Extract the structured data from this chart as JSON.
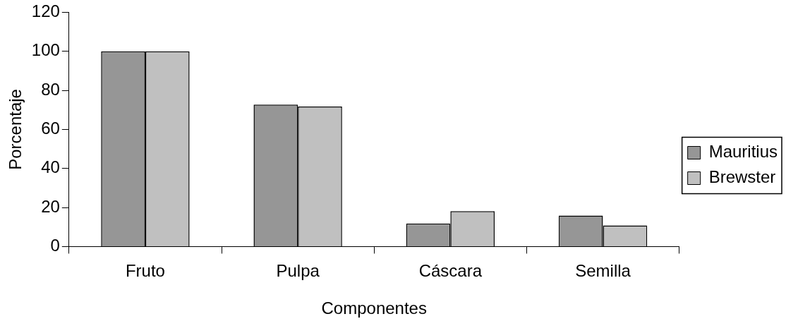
{
  "chart_data": {
    "type": "bar",
    "xlabel": "Componentes",
    "ylabel": "Porcentaje",
    "categories": [
      "Fruto",
      "Pulpa",
      "Cáscara",
      "Semilla"
    ],
    "series": [
      {
        "name": "Mauritius",
        "color": "#969696",
        "values": [
          100,
          72.7,
          11.8,
          15.9
        ]
      },
      {
        "name": "Brewster",
        "color": "#c0c0c0",
        "values": [
          100,
          71.7,
          18.1,
          10.8
        ]
      }
    ],
    "ylim": [
      0,
      120
    ],
    "yticks": [
      0,
      20,
      40,
      60,
      80,
      100,
      120
    ],
    "grid": false,
    "legend": "right"
  }
}
